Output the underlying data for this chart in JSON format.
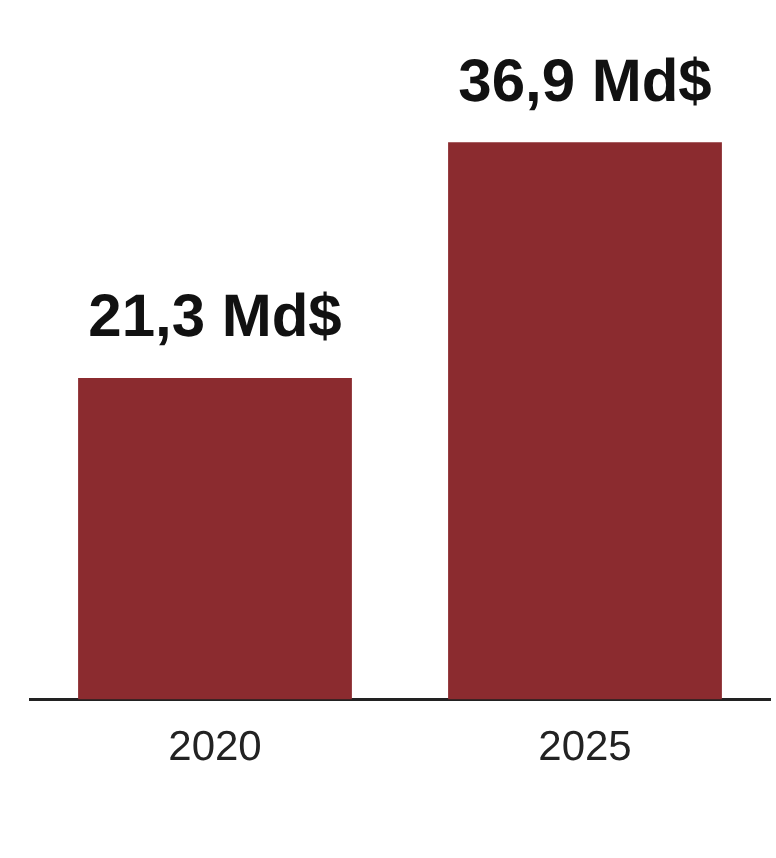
{
  "chart_data": {
    "type": "bar",
    "categories": [
      "2020",
      "2025"
    ],
    "values": [
      21.3,
      36.9
    ],
    "value_labels": [
      "21,3 Md$",
      "36,9 Md$"
    ],
    "color": "#8b2b2f",
    "grid": false,
    "legend": false,
    "tick_labels": "x"
  }
}
